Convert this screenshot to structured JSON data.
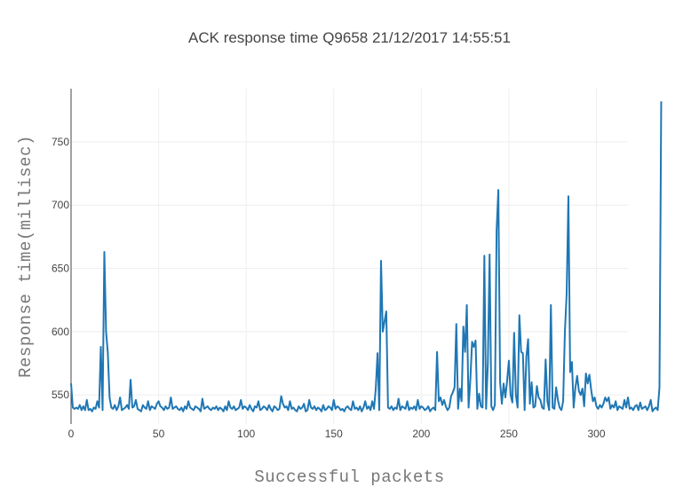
{
  "chart_data": {
    "type": "line",
    "title": "ACK response time Q9658 21/12/2017 14:55:51",
    "xlabel": "Successful packets",
    "ylabel": "Response time(millisec)",
    "xlim": [
      0,
      318
    ],
    "ylim": [
      527,
      792
    ],
    "x_ticks": [
      0,
      50,
      100,
      150,
      200,
      250,
      300
    ],
    "y_ticks": [
      550,
      600,
      650,
      700,
      750
    ],
    "grid": true,
    "line_color": "#1f77b4",
    "series": [
      {
        "values": [
          559,
          540,
          539,
          540,
          539,
          542,
          538,
          541,
          538,
          546,
          538,
          539,
          537,
          540,
          539,
          545,
          540,
          588,
          538,
          663,
          600,
          583,
          548,
          540,
          539,
          542,
          538,
          541,
          548,
          538,
          539,
          540,
          542,
          539,
          562,
          540,
          541,
          546,
          539,
          538,
          537,
          542,
          540,
          539,
          545,
          538,
          541,
          540,
          539,
          543,
          545,
          541,
          540,
          538,
          541,
          539,
          540,
          548,
          539,
          540,
          541,
          539,
          538,
          540,
          537,
          541,
          539,
          545,
          540,
          539,
          538,
          541,
          540,
          539,
          537,
          547,
          539,
          540,
          541,
          539,
          538,
          540,
          539,
          541,
          538,
          540,
          539,
          537,
          541,
          538,
          545,
          540,
          539,
          541,
          538,
          539,
          540,
          546,
          539,
          541,
          540,
          538,
          542,
          539,
          537,
          541,
          540,
          545,
          538,
          539,
          541,
          540,
          538,
          542,
          539,
          537,
          541,
          540,
          538,
          539,
          549,
          543,
          540,
          541,
          538,
          545,
          539,
          540,
          538,
          537,
          541,
          539,
          540,
          543,
          537,
          538,
          546,
          540,
          539,
          541,
          538,
          540,
          539,
          537,
          542,
          538,
          539,
          541,
          540,
          538,
          546,
          539,
          541,
          540,
          538,
          539,
          537,
          540,
          541,
          539,
          538,
          545,
          539,
          540,
          538,
          541,
          537,
          540,
          545,
          539,
          541,
          538,
          545,
          539,
          555,
          583,
          538,
          656,
          600,
          608,
          616,
          540,
          539,
          541,
          538,
          540,
          539,
          547,
          538,
          541,
          540,
          539,
          545,
          538,
          540,
          539,
          541,
          538,
          546,
          539,
          541,
          540,
          538,
          539,
          541,
          537,
          539,
          540,
          538,
          584,
          545,
          548,
          542,
          546,
          541,
          538,
          540,
          549,
          552,
          556,
          606,
          539,
          555,
          545,
          604,
          584,
          621,
          540,
          562,
          592,
          588,
          593,
          539,
          551,
          541,
          540,
          660,
          539,
          575,
          661,
          541,
          538,
          542,
          680,
          712,
          560,
          543,
          559,
          548,
          561,
          577,
          550,
          544,
          599,
          550,
          540,
          613,
          584,
          583,
          538,
          580,
          594,
          543,
          560,
          540,
          541,
          557,
          548,
          546,
          540,
          539,
          578,
          545,
          538,
          621,
          540,
          539,
          556,
          546,
          540,
          538,
          545,
          600,
          630,
          707,
          568,
          576,
          540,
          556,
          565,
          553,
          550,
          555,
          541,
          567,
          559,
          566,
          554,
          545,
          548,
          541,
          539,
          542,
          540,
          543,
          548,
          545,
          548,
          539,
          542,
          540,
          545,
          538,
          541,
          540,
          539,
          546,
          540,
          548,
          539,
          540,
          538,
          541,
          542,
          538,
          544,
          539,
          540,
          541,
          538,
          541,
          546,
          537,
          539,
          540,
          538,
          556,
          782
        ]
      }
    ]
  }
}
